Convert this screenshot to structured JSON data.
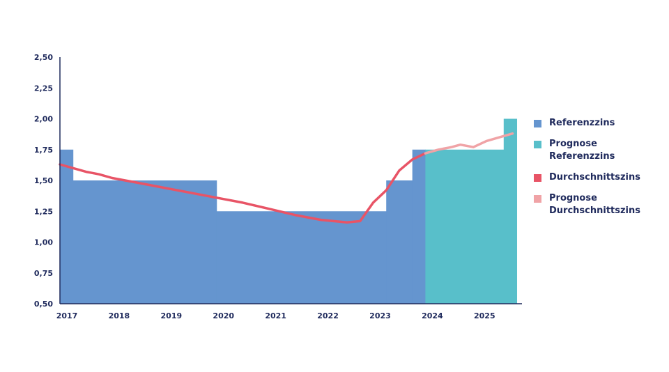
{
  "chart_data": {
    "type": "area",
    "x_ticks": [
      "2017",
      "2018",
      "2019",
      "2020",
      "2021",
      "2022",
      "2023",
      "2024",
      "2025"
    ],
    "y_ticks": [
      "0,50",
      "0,75",
      "1,00",
      "1,25",
      "1,50",
      "1,75",
      "2,00",
      "2,25",
      "2,50"
    ],
    "ylim": [
      0.5,
      2.5
    ],
    "xlim": [
      2017.0,
      2025.85
    ],
    "series": [
      {
        "name": "Referenzzins",
        "kind": "step",
        "color": "#6595cf",
        "steps": [
          {
            "from": 2017.0,
            "to": 2017.25,
            "value": 1.75
          },
          {
            "from": 2017.25,
            "to": 2020.0,
            "value": 1.5
          },
          {
            "from": 2020.0,
            "to": 2023.25,
            "value": 1.25
          },
          {
            "from": 2023.25,
            "to": 2023.75,
            "value": 1.5
          },
          {
            "from": 2023.75,
            "to": 2024.0,
            "value": 1.75
          }
        ]
      },
      {
        "name": "Prognose\nReferenzzins",
        "kind": "step",
        "color": "#58bfca",
        "steps": [
          {
            "from": 2024.0,
            "to": 2025.5,
            "value": 1.75
          },
          {
            "from": 2025.5,
            "to": 2025.75,
            "value": 2.0
          }
        ]
      },
      {
        "name": "Durchschnittszins",
        "kind": "line",
        "color": "#e85466",
        "points": [
          [
            2017.0,
            1.63
          ],
          [
            2017.25,
            1.6
          ],
          [
            2017.5,
            1.57
          ],
          [
            2017.75,
            1.55
          ],
          [
            2018.0,
            1.52
          ],
          [
            2018.5,
            1.48
          ],
          [
            2019.0,
            1.44
          ],
          [
            2019.5,
            1.4
          ],
          [
            2020.0,
            1.36
          ],
          [
            2020.5,
            1.32
          ],
          [
            2021.0,
            1.27
          ],
          [
            2021.5,
            1.22
          ],
          [
            2022.0,
            1.18
          ],
          [
            2022.5,
            1.16
          ],
          [
            2022.75,
            1.17
          ],
          [
            2023.0,
            1.32
          ],
          [
            2023.25,
            1.42
          ],
          [
            2023.5,
            1.58
          ],
          [
            2023.75,
            1.67
          ],
          [
            2024.0,
            1.72
          ]
        ]
      },
      {
        "name": "Prognose\nDurchschnittszins",
        "kind": "line",
        "color": "#f0a3a6",
        "points": [
          [
            2024.0,
            1.72
          ],
          [
            2024.25,
            1.75
          ],
          [
            2024.5,
            1.77
          ],
          [
            2024.67,
            1.79
          ],
          [
            2024.92,
            1.77
          ],
          [
            2025.17,
            1.82
          ],
          [
            2025.5,
            1.86
          ],
          [
            2025.67,
            1.88
          ]
        ]
      }
    ],
    "legend_position": "right",
    "grid": false,
    "title": "",
    "xlabel": "",
    "ylabel": ""
  }
}
